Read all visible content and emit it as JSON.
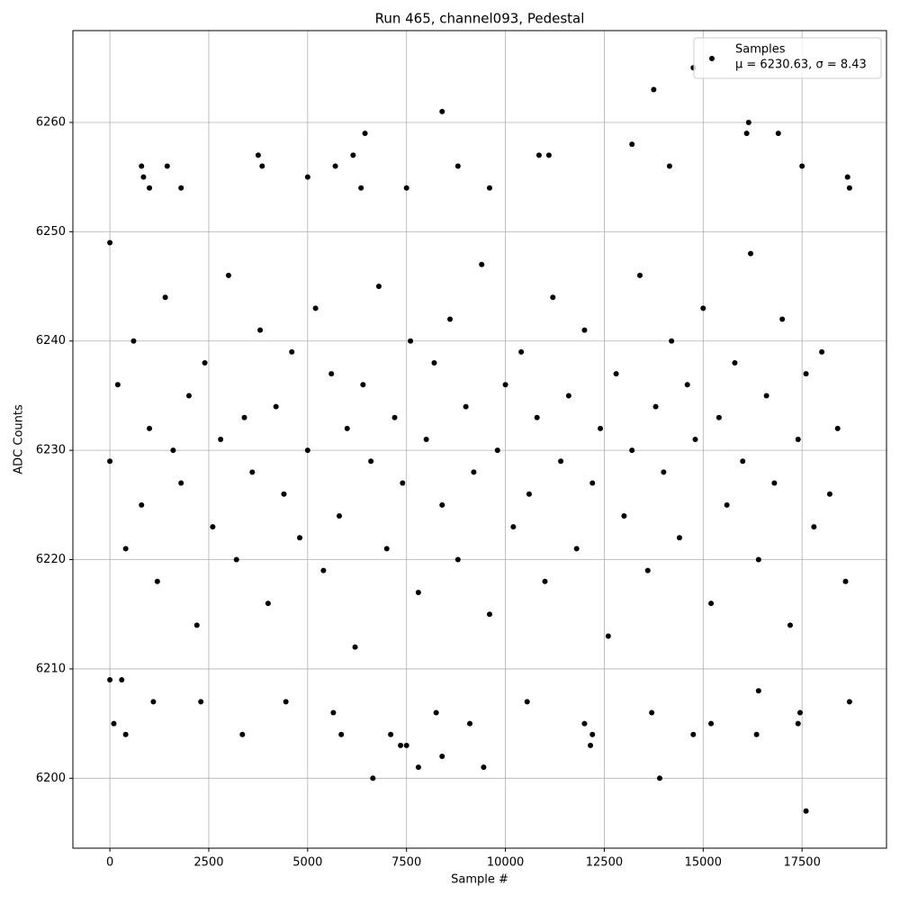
{
  "chart_data": {
    "type": "scatter",
    "title": "Run 465, channel093, Pedestal",
    "xlabel": "Sample #",
    "ylabel": "ADC Counts",
    "annotation": "μ = 6230.63, σ = 8.43",
    "xlim": [
      -935,
      19635
    ],
    "ylim": [
      6193.6,
      6268.4
    ],
    "xticks": [
      0,
      2500,
      5000,
      7500,
      10000,
      12500,
      15000,
      17500
    ],
    "yticks": [
      6200,
      6210,
      6220,
      6230,
      6240,
      6250,
      6260
    ],
    "grid": true,
    "legend": "upper right",
    "series": [
      {
        "name": "Samples",
        "color": "#000000",
        "x": [
          0,
          200,
          400,
          600,
          800,
          1000,
          1200,
          1400,
          1600,
          1800,
          2000,
          2200,
          2400,
          2600,
          2800,
          3000,
          3200,
          3400,
          3600,
          3800,
          4000,
          4200,
          4400,
          4600,
          4800,
          5000,
          5200,
          5400,
          5600,
          5800,
          6000,
          6200,
          6400,
          6600,
          6800,
          7000,
          7200,
          7400,
          7600,
          7800,
          8000,
          8200,
          8400,
          8600,
          8800,
          9000,
          9200,
          9400,
          9600,
          9800,
          10000,
          10200,
          10400,
          10600,
          10800,
          11000,
          11200,
          11400,
          11600,
          11800,
          12000,
          12200,
          12400,
          12600,
          12800,
          13000,
          13200,
          13400,
          13600,
          13800,
          14000,
          14200,
          14400,
          14600,
          14800,
          15000,
          15200,
          15400,
          15600,
          15800,
          16000,
          16200,
          16400,
          16600,
          16800,
          17000,
          17200,
          17400,
          17600,
          17800,
          18000,
          18200,
          18400,
          18600,
          0,
          0,
          100,
          400,
          300,
          800,
          850,
          1000,
          1450,
          1100,
          2300,
          1800,
          3350,
          3750,
          3850,
          4450,
          5000,
          5700,
          5650,
          5850,
          6150,
          6350,
          6450,
          6650,
          7100,
          7350,
          7500,
          7500,
          7800,
          8250,
          8400,
          8400,
          8800,
          9100,
          9450,
          9600,
          10550,
          10850,
          11100,
          12000,
          12150,
          12200,
          13200,
          13700,
          13750,
          13900,
          14150,
          14750,
          14750,
          15200,
          16100,
          16150,
          16350,
          16400,
          16900,
          17400,
          17450,
          17500,
          17600,
          18700,
          18700,
          18650
        ],
        "values": [
          6229,
          6236,
          6221,
          6240,
          6225,
          6232,
          6218,
          6244,
          6230,
          6227,
          6235,
          6214,
          6238,
          6223,
          6231,
          6246,
          6220,
          6233,
          6228,
          6241,
          6216,
          6234,
          6226,
          6239,
          6222,
          6230,
          6243,
          6219,
          6237,
          6224,
          6232,
          6212,
          6236,
          6229,
          6245,
          6221,
          6233,
          6227,
          6240,
          6217,
          6231,
          6238,
          6225,
          6242,
          6220,
          6234,
          6228,
          6247,
          6215,
          6230,
          6236,
          6223,
          6239,
          6226,
          6233,
          6218,
          6244,
          6229,
          6235,
          6221,
          6241,
          6227,
          6232,
          6213,
          6237,
          6224,
          6230,
          6246,
          6219,
          6234,
          6228,
          6240,
          6222,
          6236,
          6231,
          6243,
          6216,
          6233,
          6225,
          6238,
          6229,
          6248,
          6220,
          6235,
          6227,
          6242,
          6214,
          6231,
          6237,
          6223,
          6239,
          6226,
          6232,
          6218,
          6249,
          6209,
          6205,
          6204,
          6209,
          6256,
          6255,
          6254,
          6256,
          6207,
          6207,
          6254,
          6204,
          6257,
          6256,
          6207,
          6255,
          6256,
          6206,
          6204,
          6257,
          6254,
          6259,
          6200,
          6204,
          6203,
          6203,
          6254,
          6201,
          6206,
          6202,
          6261,
          6256,
          6205,
          6201,
          6254,
          6207,
          6257,
          6257,
          6205,
          6203,
          6204,
          6258,
          6206,
          6263,
          6200,
          6256,
          6265,
          6204,
          6205,
          6259,
          6260,
          6204,
          6208,
          6259,
          6205,
          6206,
          6256,
          6197,
          6254,
          6207,
          6255
        ]
      }
    ]
  }
}
